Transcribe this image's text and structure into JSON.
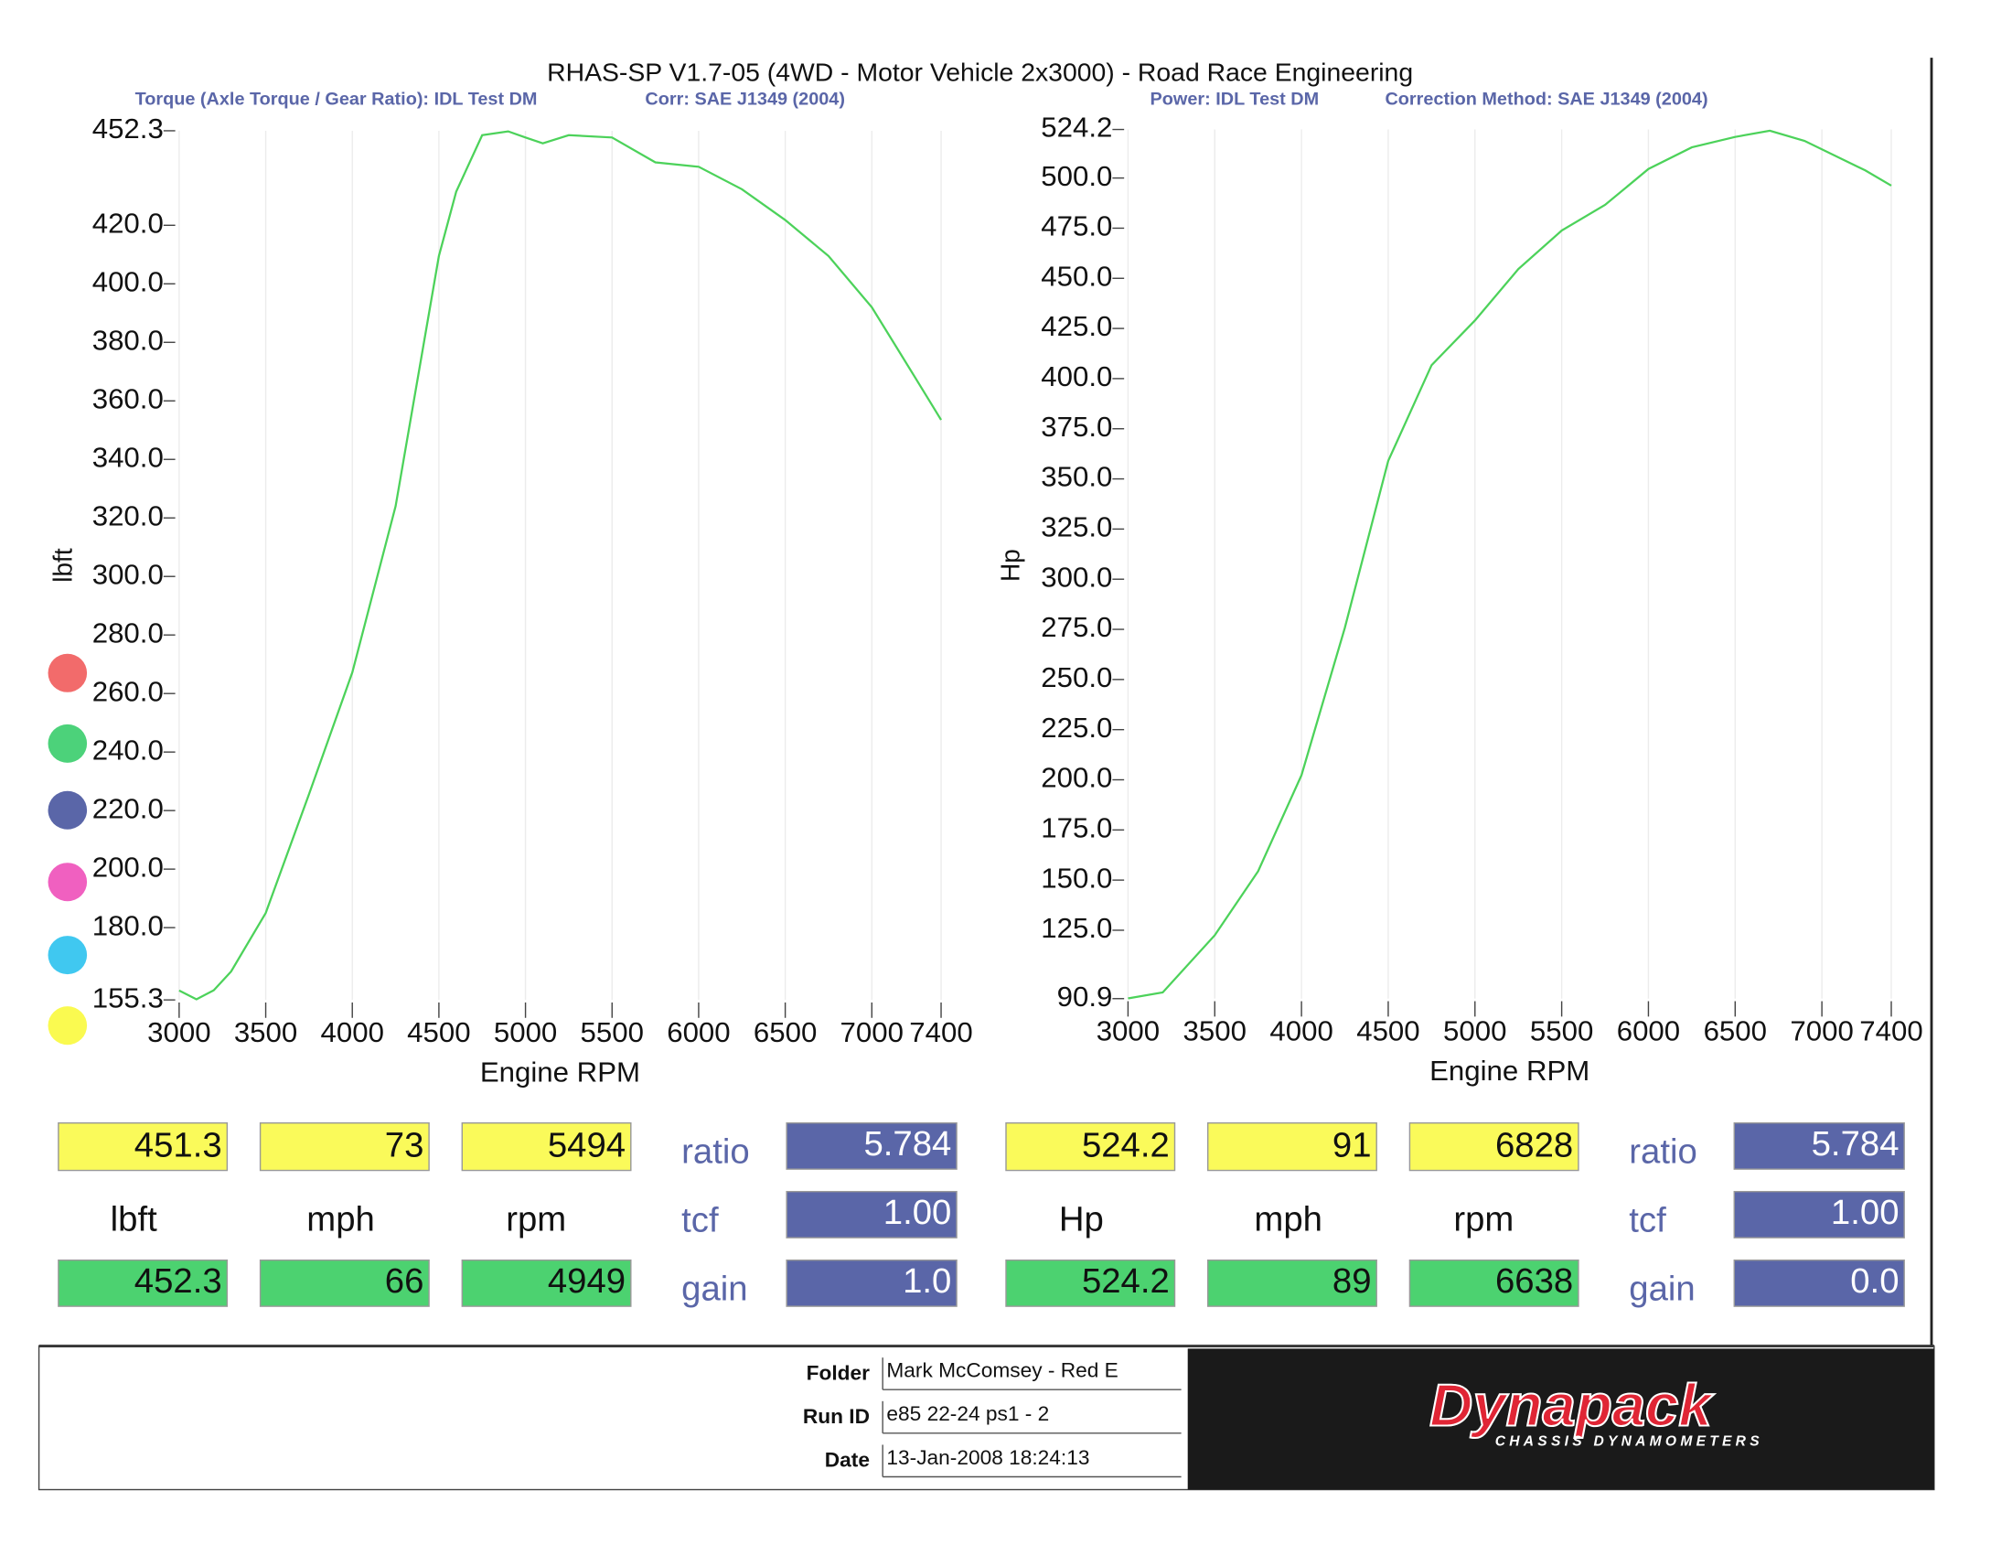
{
  "title": "RHAS-SP V1.7-05   (4WD - Motor Vehicle 2x3000) - Road Race Engineering",
  "chart_data": [
    {
      "type": "line",
      "subtitles": [
        "Torque (Axle Torque / Gear Ratio): IDL Test DM",
        "Corr: SAE J1349 (2004)"
      ],
      "x_label": "Engine RPM",
      "y_label": "lbft",
      "x": [
        3000,
        3100,
        3200,
        3300,
        3500,
        3750,
        4000,
        4250,
        4500,
        4600,
        4750,
        4900,
        5000,
        5100,
        5250,
        5500,
        5750,
        6000,
        6250,
        6500,
        6750,
        7000,
        7250,
        7400
      ],
      "series": [
        {
          "color": "#4cd25a",
          "values": [
            158.5,
            155.5,
            158.6,
            165,
            185,
            225.6,
            267.2,
            324,
            409.5,
            431.5,
            450.8,
            452.1,
            450,
            448,
            450.8,
            450,
            441.5,
            440,
            432.3,
            421.8,
            409.5,
            392,
            368,
            353.5
          ]
        }
      ],
      "xlim": [
        3000,
        7400
      ],
      "xticks": [
        3000,
        3500,
        4000,
        4500,
        5000,
        5500,
        6000,
        6500,
        7000,
        7400
      ],
      "ylim": [
        155.3,
        452.3
      ],
      "yticks": [
        155.3,
        {
          "value": 180,
          "label": "180.0"
        },
        {
          "value": 200,
          "label": "200.0"
        },
        {
          "value": 220,
          "label": "220.0"
        },
        {
          "value": 240,
          "label": "240.0"
        },
        {
          "value": 260,
          "label": "260.0"
        },
        {
          "value": 280,
          "label": "280.0"
        },
        {
          "value": 300,
          "label": "300.0"
        },
        {
          "value": 320,
          "label": "320.0"
        },
        {
          "value": 340,
          "label": "340.0"
        },
        {
          "value": 360,
          "label": "360.0"
        },
        {
          "value": 380,
          "label": "380.0"
        },
        {
          "value": 400,
          "label": "400.0"
        },
        {
          "value": 420,
          "label": "420.0"
        },
        452.3
      ],
      "grid": true
    },
    {
      "type": "line",
      "subtitles": [
        "Power: IDL Test DM",
        "Correction Method: SAE J1349 (2004)"
      ],
      "x_label": "Engine RPM",
      "y_label": "Hp",
      "x": [
        3000,
        3200,
        3500,
        3750,
        4000,
        4250,
        4500,
        4750,
        5000,
        5250,
        5500,
        5750,
        6000,
        6250,
        6500,
        6700,
        6900,
        7250,
        7400
      ],
      "series": [
        {
          "color": "#4cd25a",
          "values": [
            91,
            94,
            122.5,
            154.4,
            202.3,
            275.8,
            359,
            406.7,
            429,
            454.6,
            473.8,
            486.6,
            504.5,
            515.3,
            520.5,
            523.6,
            518.5,
            503.8,
            496.2
          ]
        }
      ],
      "xlim": [
        3000,
        7400
      ],
      "xticks": [
        3000,
        3500,
        4000,
        4500,
        5000,
        5500,
        6000,
        6500,
        7000,
        7400
      ],
      "ylim": [
        90.9,
        524.2
      ],
      "yticks": [
        90.9,
        {
          "value": 125,
          "label": "125.0"
        },
        {
          "value": 150,
          "label": "150.0"
        },
        {
          "value": 175,
          "label": "175.0"
        },
        {
          "value": 200,
          "label": "200.0"
        },
        {
          "value": 225,
          "label": "225.0"
        },
        {
          "value": 250,
          "label": "250.0"
        },
        {
          "value": 275,
          "label": "275.0"
        },
        {
          "value": 300,
          "label": "300.0"
        },
        {
          "value": 325,
          "label": "325.0"
        },
        {
          "value": 350,
          "label": "350.0"
        },
        {
          "value": 375,
          "label": "375.0"
        },
        {
          "value": 400,
          "label": "400.0"
        },
        {
          "value": 425,
          "label": "425.0"
        },
        {
          "value": 450,
          "label": "450.0"
        },
        {
          "value": 475,
          "label": "475.0"
        },
        {
          "value": 500,
          "label": "500.0"
        },
        524.2
      ],
      "grid": true
    }
  ],
  "readouts": [
    {
      "top": [
        "451.3",
        "73",
        "5494"
      ],
      "units": [
        "lbft",
        "mph",
        "rpm"
      ],
      "bottom": [
        "452.3",
        "66",
        "4949"
      ],
      "params": [
        {
          "label": "ratio",
          "value": "5.784"
        },
        {
          "label": "tcf",
          "value": "1.00"
        },
        {
          "label": "gain",
          "value": "1.0"
        }
      ]
    },
    {
      "top": [
        "524.2",
        "91",
        "6828"
      ],
      "units": [
        "Hp",
        "mph",
        "rpm"
      ],
      "bottom": [
        "524.2",
        "89",
        "6638"
      ],
      "params": [
        {
          "label": "ratio",
          "value": "5.784"
        },
        {
          "label": "tcf",
          "value": "1.00"
        },
        {
          "label": "gain",
          "value": "0.0"
        }
      ]
    }
  ],
  "footer": {
    "fields": [
      {
        "label": "Folder",
        "value": "Mark McComsey - Red E"
      },
      {
        "label": "Run ID",
        "value": "e85 22-24 ps1 - 2"
      },
      {
        "label": "Date",
        "value": "13-Jan-2008  18:24:13"
      }
    ],
    "logo": "Dynapack",
    "logo_sub": "CHASSIS DYNAMOMETERS"
  }
}
